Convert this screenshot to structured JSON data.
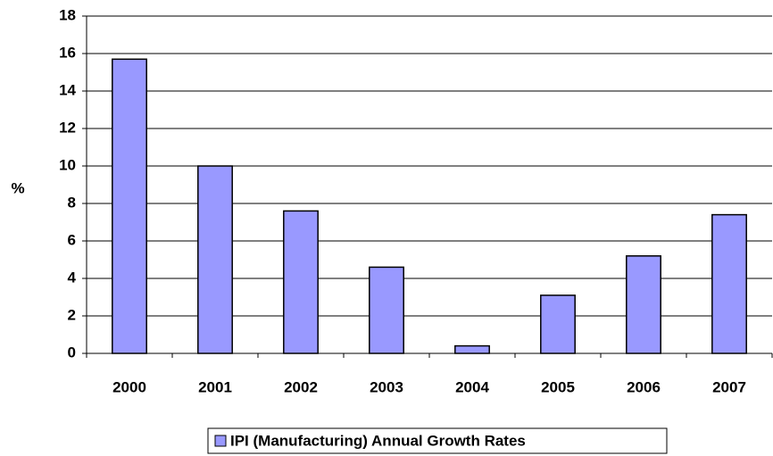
{
  "chart_data": {
    "type": "bar",
    "y_label": "%",
    "categories": [
      "2000",
      "2001",
      "2002",
      "2003",
      "2004",
      "2005",
      "2006",
      "2007"
    ],
    "series": [
      {
        "name": "IPI (Manufacturing) Annual Growth Rates",
        "color": "#9999ff",
        "values": [
          15.7,
          10.0,
          7.6,
          4.6,
          0.4,
          3.1,
          5.2,
          7.4
        ]
      }
    ],
    "ylim": [
      0,
      18
    ],
    "yticks": [
      0,
      2,
      4,
      6,
      8,
      10,
      12,
      14,
      16,
      18
    ],
    "grid": true,
    "legend": "bottom"
  }
}
